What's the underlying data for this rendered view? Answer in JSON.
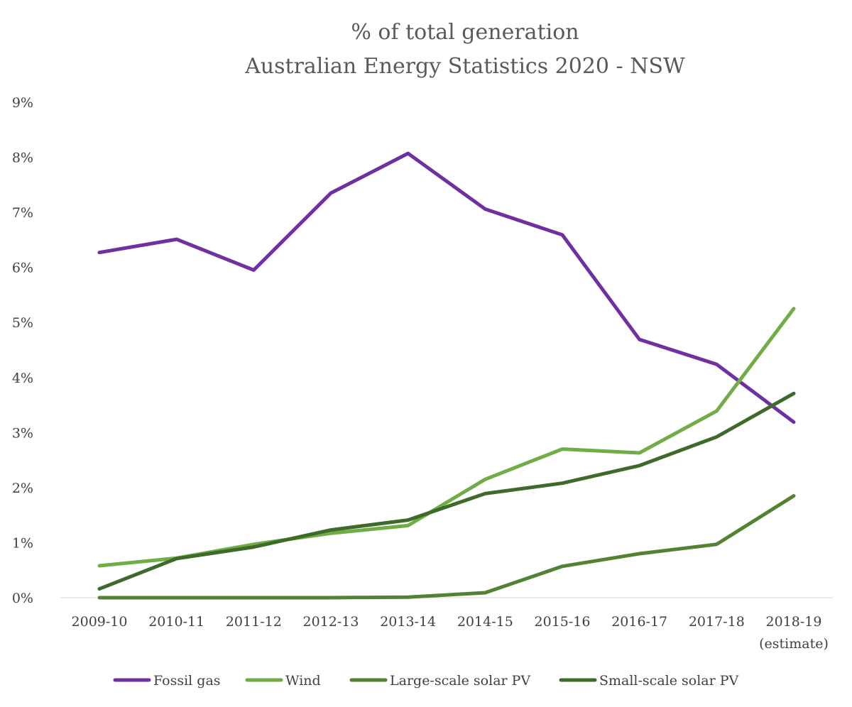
{
  "chart_data": {
    "type": "line",
    "title": "% of total generation",
    "subtitle": "Australian Energy Statistics 2020 - NSW",
    "xlabel": "",
    "ylabel": "",
    "categories": [
      "2009-10",
      "2010-11",
      "2011-12",
      "2012-13",
      "2013-14",
      "2014-15",
      "2015-16",
      "2016-17",
      "2017-18",
      "2018-19"
    ],
    "category_notes": [
      "",
      "",
      "",
      "",
      "",
      "",
      "",
      "",
      "",
      "(estimate)"
    ],
    "ylim": [
      0,
      9
    ],
    "yticks": [
      0,
      1,
      2,
      3,
      4,
      5,
      6,
      7,
      8,
      9
    ],
    "ytick_labels": [
      "0%",
      "1%",
      "2%",
      "3%",
      "4%",
      "5%",
      "6%",
      "7%",
      "8%",
      "9%"
    ],
    "grid": false,
    "legend_position": "bottom",
    "series": [
      {
        "name": "Fossil gas",
        "color": "#7030a0",
        "values": [
          6.27,
          6.51,
          5.95,
          7.35,
          8.07,
          7.06,
          6.59,
          4.69,
          4.24,
          3.19
        ]
      },
      {
        "name": "Wind",
        "color": "#70ad47",
        "values": [
          0.58,
          0.72,
          0.97,
          1.17,
          1.31,
          2.15,
          2.7,
          2.63,
          3.39,
          5.25
        ]
      },
      {
        "name": "Large-scale solar PV",
        "color": "#548235",
        "values": [
          0.0,
          0.0,
          0.0,
          0.0,
          0.01,
          0.09,
          0.57,
          0.8,
          0.97,
          1.85
        ]
      },
      {
        "name": "Small-scale solar PV",
        "color": "#3f6b2a",
        "values": [
          0.16,
          0.71,
          0.92,
          1.23,
          1.41,
          1.89,
          2.08,
          2.4,
          2.92,
          3.71
        ]
      }
    ]
  }
}
